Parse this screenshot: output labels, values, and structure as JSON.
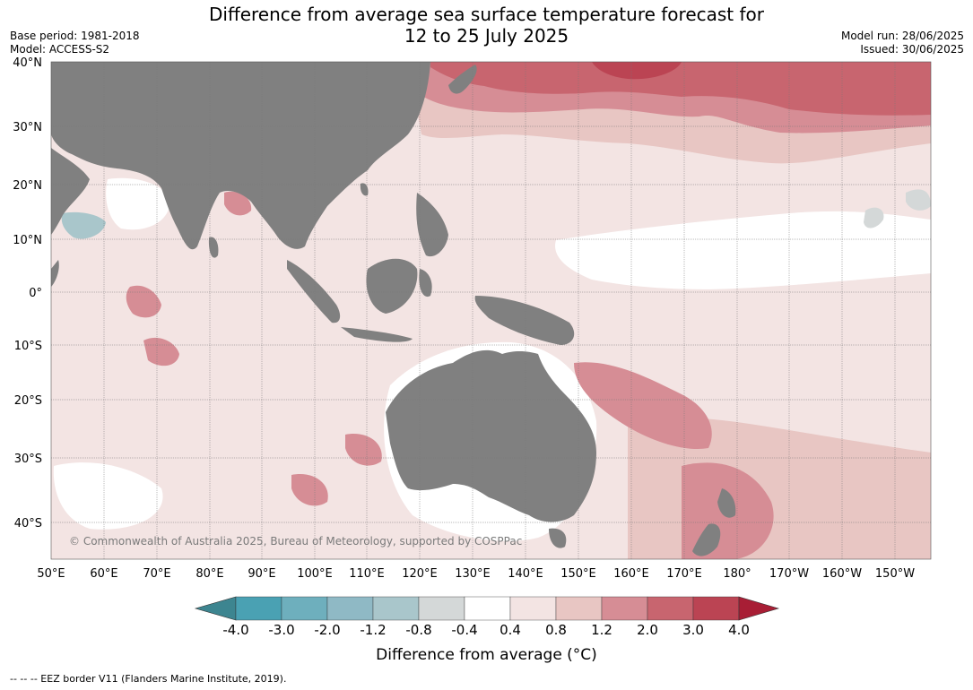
{
  "header": {
    "title_line1": "Difference from average sea surface temperature forecast for",
    "title_line2": "12 to 25 July 2025",
    "base_period": "Base period: 1981-2018",
    "model": "Model: ACCESS-S2",
    "model_run": "Model run: 28/06/2025",
    "issued": "Issued: 30/06/2025"
  },
  "map": {
    "lon_labels": [
      "50°E",
      "60°E",
      "70°E",
      "80°E",
      "90°E",
      "100°E",
      "110°E",
      "120°E",
      "130°E",
      "140°E",
      "150°E",
      "160°E",
      "170°E",
      "180°",
      "170°W",
      "160°W",
      "150°W"
    ],
    "lat_labels": [
      "40°N",
      "30°N",
      "20°N",
      "10°N",
      "0°",
      "10°S",
      "20°S",
      "30°S",
      "40°S"
    ],
    "copyright": "© Commonwealth of Australia 2025, Bureau of Meteorology, supported by COSPPac",
    "land_color": "#808080",
    "ocean_background": "#f3e4e3"
  },
  "colorbar": {
    "ticks": [
      "-4.0",
      "-3.0",
      "-2.0",
      "-1.2",
      "-0.8",
      "-0.4",
      "0.4",
      "0.8",
      "1.2",
      "2.0",
      "3.0",
      "4.0"
    ],
    "colors": [
      "#3d8590",
      "#4aa1b3",
      "#6eafbd",
      "#8fb9c5",
      "#a9c6cb",
      "#d4d8d8",
      "#ffffff",
      "#f3e4e3",
      "#e8c6c3",
      "#d68d95",
      "#c8656f",
      "#bb4453",
      "#a81e35"
    ],
    "label": "Difference from average (°C)"
  },
  "footer": {
    "eez_note": "--  --  -- EEZ border V11 (Flanders Marine Institute, 2019)."
  }
}
